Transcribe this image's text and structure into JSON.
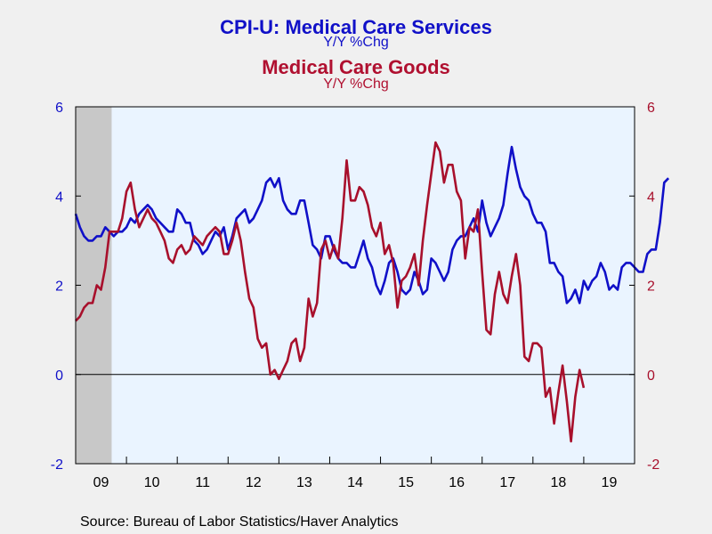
{
  "titles": {
    "series1_title": "CPI-U: Medical Care Services",
    "series1_subtitle": "Y/Y %Chg",
    "series2_title": "Medical Care Goods",
    "series2_subtitle": "Y/Y %Chg"
  },
  "source": "Source:  Bureau of Labor Statistics/Haver Analytics",
  "colors": {
    "services": "#1010c8",
    "goods": "#a8102c",
    "plot_bg": "#eaf4ff",
    "recession": "#c8c8c8",
    "page_bg": "#f0f0f0"
  },
  "chart_data": {
    "type": "line",
    "x_unit": "months since Jul 2008",
    "x_start": "2008-07",
    "frequency": "monthly",
    "xlim": [
      0,
      132
    ],
    "x_tick_labels": [
      "09",
      "10",
      "11",
      "12",
      "13",
      "14",
      "15",
      "16",
      "17",
      "18",
      "19"
    ],
    "x_tick_label_positions": [
      6,
      18,
      30,
      42,
      54,
      66,
      78,
      90,
      102,
      114,
      126
    ],
    "x_tick_marks": [
      12,
      24,
      36,
      48,
      60,
      72,
      84,
      96,
      108,
      120
    ],
    "ylim_left": [
      -2,
      6
    ],
    "ylim_right": [
      -2,
      6
    ],
    "y_ticks": [
      -2,
      0,
      2,
      4,
      6
    ],
    "y_tick_labels": [
      "-2",
      "0",
      "2",
      "4",
      "6"
    ],
    "zero_line": 0,
    "recession_shading": [
      0,
      8.5
    ],
    "grid": false,
    "series": [
      {
        "name": "CPI-U: Medical Care Services",
        "axis": "left",
        "values": [
          3.6,
          3.3,
          3.1,
          3.0,
          3.0,
          3.1,
          3.1,
          3.3,
          3.2,
          3.1,
          3.2,
          3.2,
          3.3,
          3.5,
          3.4,
          3.6,
          3.7,
          3.8,
          3.7,
          3.5,
          3.4,
          3.3,
          3.2,
          3.2,
          3.7,
          3.6,
          3.4,
          3.4,
          3.0,
          2.9,
          2.7,
          2.8,
          3.0,
          3.2,
          3.1,
          3.3,
          2.8,
          3.1,
          3.5,
          3.6,
          3.7,
          3.4,
          3.5,
          3.7,
          3.9,
          4.3,
          4.4,
          4.2,
          4.4,
          3.9,
          3.7,
          3.6,
          3.6,
          3.9,
          3.9,
          3.4,
          2.9,
          2.8,
          2.6,
          3.1,
          3.1,
          2.8,
          2.6,
          2.5,
          2.5,
          2.4,
          2.4,
          2.7,
          3.0,
          2.6,
          2.4,
          2.0,
          1.8,
          2.1,
          2.5,
          2.6,
          2.3,
          1.9,
          1.8,
          1.9,
          2.3,
          2.1,
          1.8,
          1.9,
          2.6,
          2.5,
          2.3,
          2.1,
          2.3,
          2.8,
          3.0,
          3.1,
          3.1,
          3.3,
          3.5,
          3.2,
          3.9,
          3.4,
          3.1,
          3.3,
          3.5,
          3.8,
          4.5,
          5.1,
          4.6,
          4.2,
          4.0,
          3.9,
          3.6,
          3.4,
          3.4,
          3.2,
          2.5,
          2.5,
          2.3,
          2.2,
          1.6,
          1.7,
          1.9,
          1.6,
          2.1,
          1.9,
          2.1,
          2.2,
          2.5,
          2.3,
          1.9,
          2.0,
          1.9,
          2.4,
          2.5,
          2.5,
          2.4,
          2.3,
          2.3,
          2.7,
          2.8,
          2.8,
          3.4,
          4.3,
          4.4
        ],
        "x_start_index": 0
      },
      {
        "name": "Medical Care Goods",
        "axis": "right",
        "values": [
          1.2,
          1.3,
          1.5,
          1.6,
          1.6,
          2.0,
          1.9,
          2.4,
          3.2,
          3.2,
          3.2,
          3.5,
          4.1,
          4.3,
          3.7,
          3.3,
          3.5,
          3.7,
          3.5,
          3.4,
          3.2,
          3.0,
          2.6,
          2.5,
          2.8,
          2.9,
          2.7,
          2.8,
          3.1,
          3.0,
          2.9,
          3.1,
          3.2,
          3.3,
          3.2,
          2.7,
          2.7,
          3.0,
          3.4,
          3.0,
          2.3,
          1.7,
          1.5,
          0.8,
          0.6,
          0.7,
          0.0,
          0.1,
          -0.1,
          0.1,
          0.3,
          0.7,
          0.8,
          0.3,
          0.6,
          1.7,
          1.3,
          1.6,
          2.8,
          3.0,
          2.6,
          2.9,
          2.6,
          3.5,
          4.8,
          3.9,
          3.9,
          4.2,
          4.1,
          3.8,
          3.3,
          3.1,
          3.4,
          2.7,
          2.9,
          2.5,
          1.5,
          2.1,
          2.2,
          2.4,
          2.7,
          2.0,
          3.0,
          3.8,
          4.5,
          5.2,
          5.0,
          4.3,
          4.7,
          4.7,
          4.1,
          3.9,
          2.6,
          3.3,
          3.2,
          3.7,
          2.3,
          1.0,
          0.9,
          1.8,
          2.3,
          1.8,
          1.6,
          2.2,
          2.7,
          2.0,
          0.4,
          0.3,
          0.7,
          0.7,
          0.6,
          -0.5,
          -0.3,
          -1.1,
          -0.4,
          0.2,
          -0.6,
          -1.5,
          -0.5,
          0.1,
          -0.3
        ],
        "x_start_index": 0
      }
    ]
  }
}
